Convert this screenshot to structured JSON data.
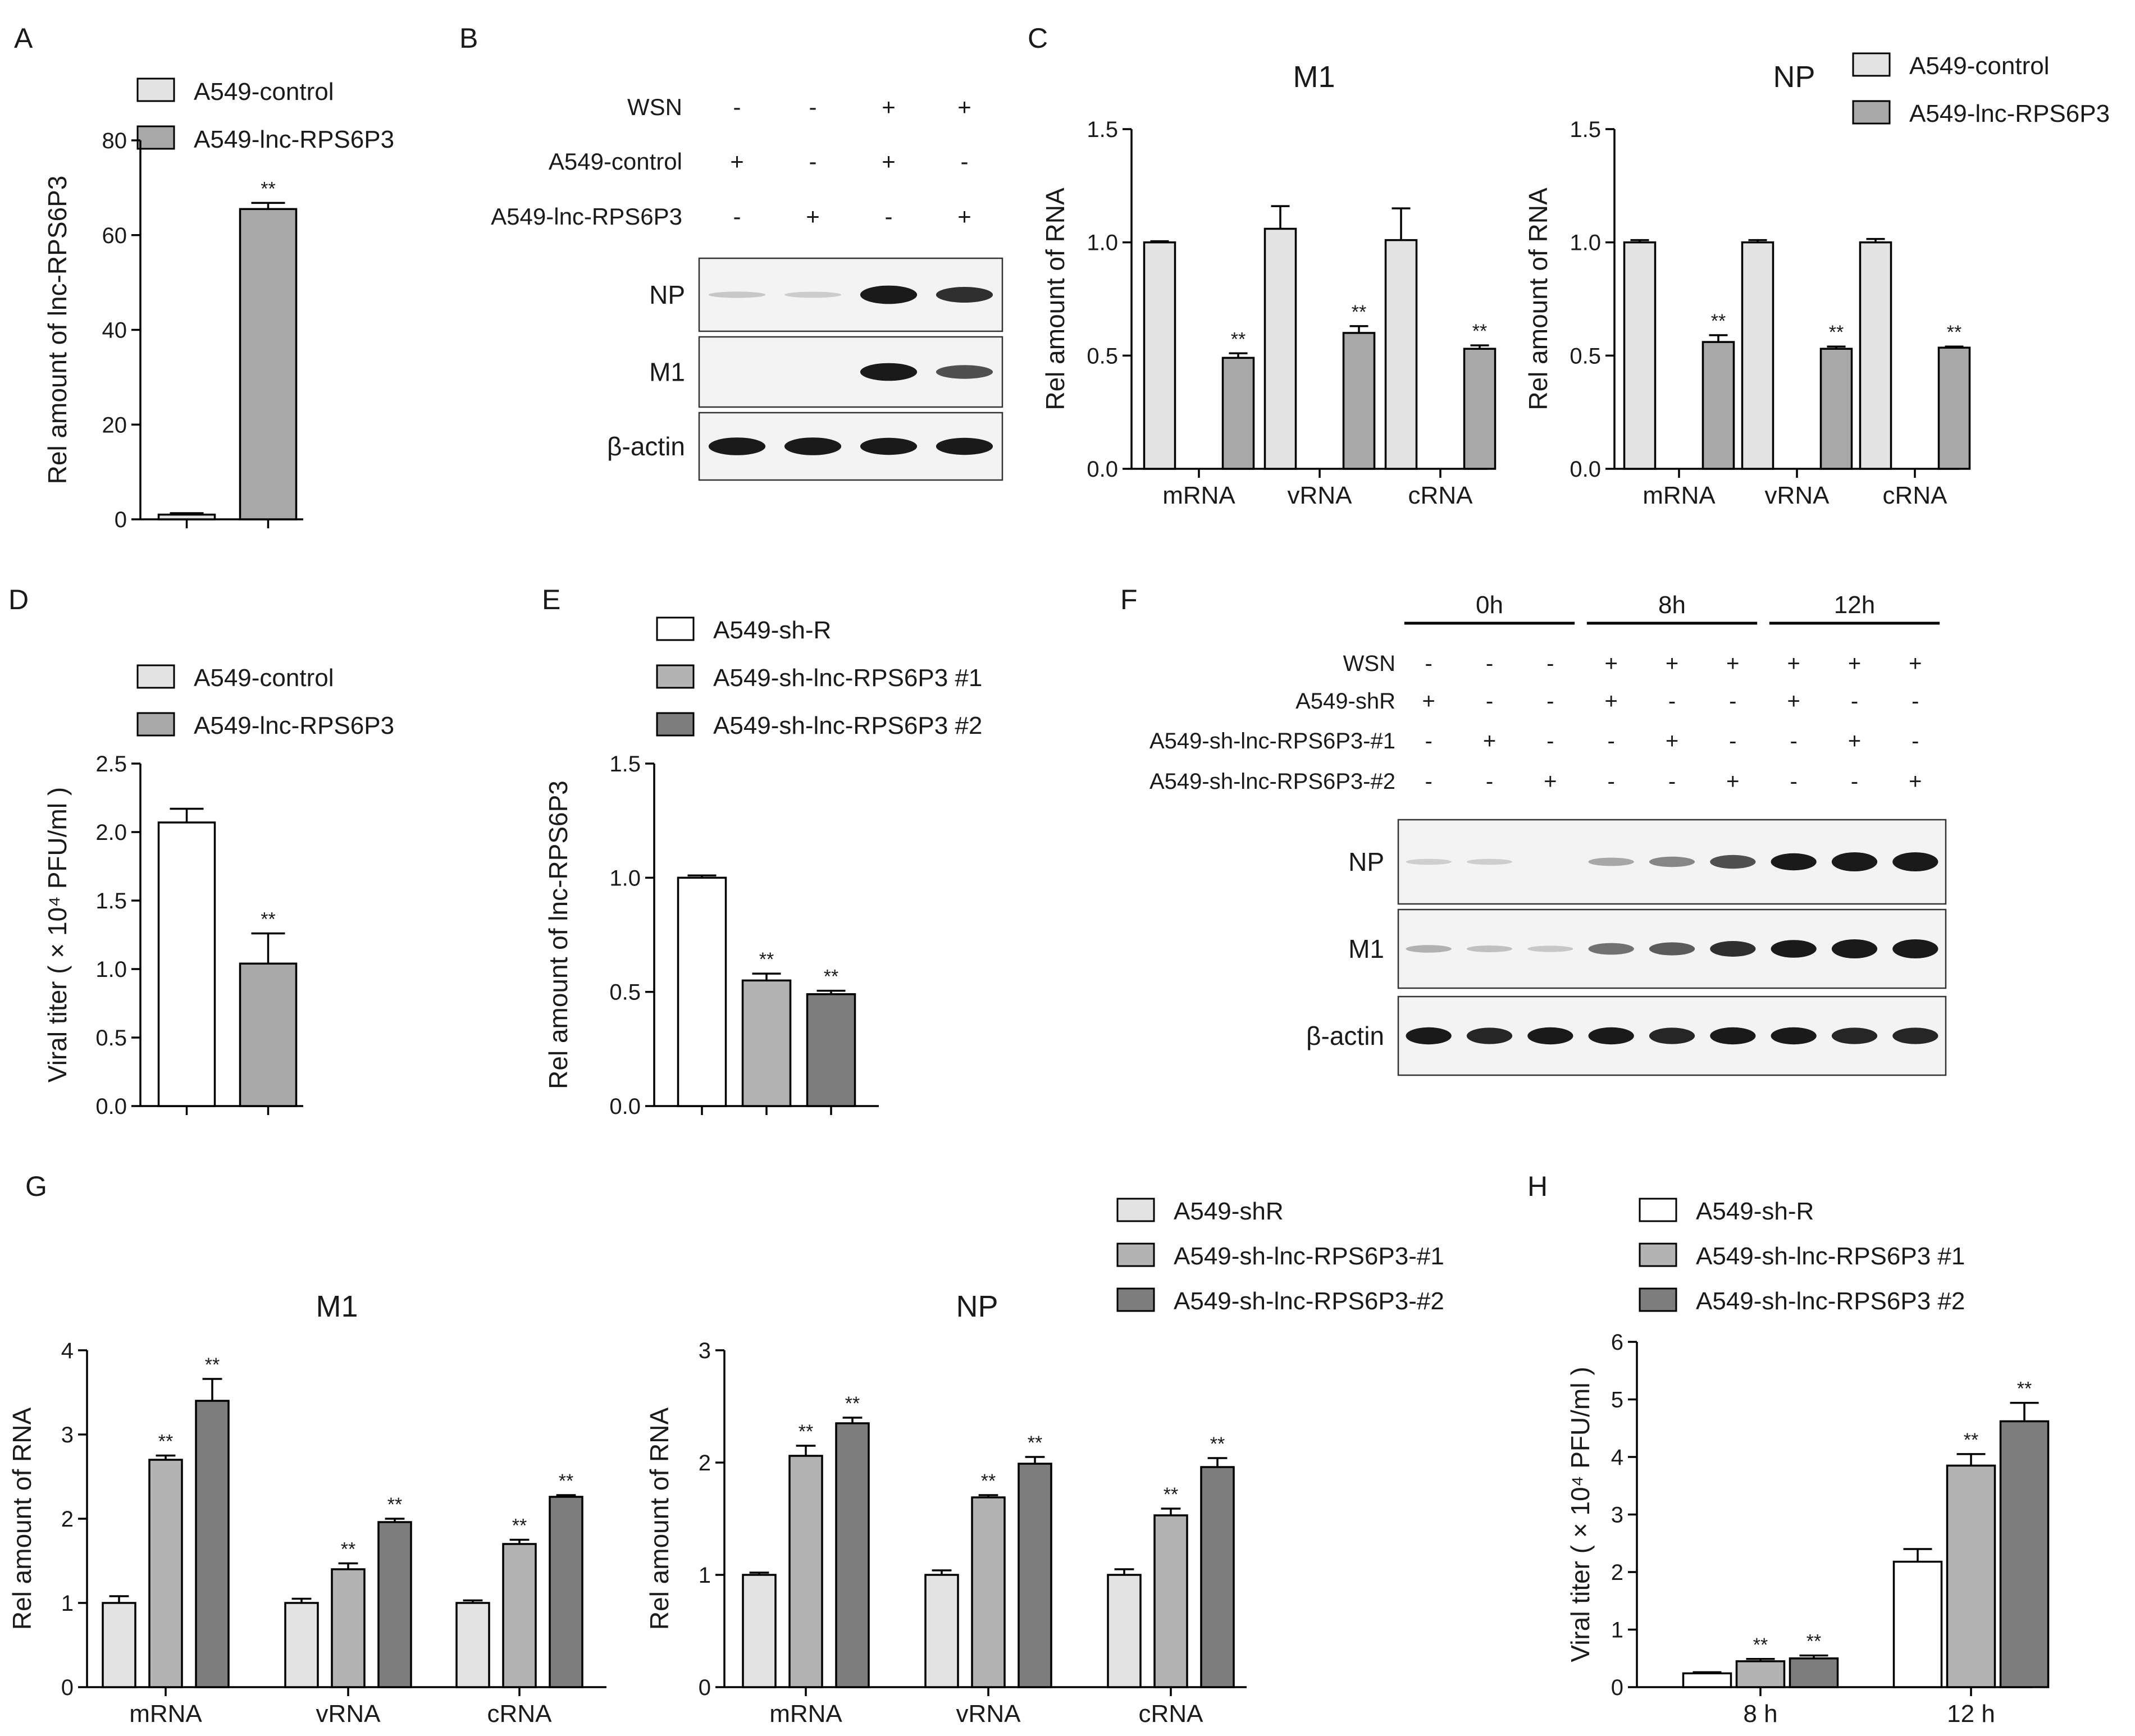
{
  "figure": {
    "panel_letters": [
      "A",
      "B",
      "C",
      "D",
      "E",
      "F",
      "G",
      "H"
    ],
    "colors": {
      "control": "#e3e3e3",
      "treated": "#a8a8a8",
      "sh1": "#b3b3b3",
      "sh2": "#7d7d7d",
      "white": "#ffffff",
      "axis": "#000000",
      "band": "#1a1a1a"
    }
  },
  "chart_data": [
    {
      "id": "A",
      "type": "bar",
      "xlabel": "",
      "ylabel": "Rel amount of lnc-RPS6P3",
      "ylim": [
        0,
        80
      ],
      "yticks": [
        "0",
        "20",
        "40",
        "60",
        "80"
      ],
      "categories": [
        ""
      ],
      "series": [
        {
          "name": "A549-control",
          "values": [
            1.0
          ],
          "errors": [
            0.3
          ],
          "sig": [
            ""
          ]
        },
        {
          "name": "A549-lnc-RPS6P3",
          "values": [
            65.5
          ],
          "errors": [
            1.3
          ],
          "sig": [
            "**"
          ]
        }
      ]
    },
    {
      "id": "C1",
      "type": "bar",
      "title": "M1",
      "ylabel": "Rel amount of RNA",
      "ylim": [
        0,
        1.5
      ],
      "yticks": [
        "0.0",
        "0.5",
        "1.0",
        "1.5"
      ],
      "categories": [
        "mRNA",
        "vRNA",
        "cRNA"
      ],
      "series": [
        {
          "name": "A549-control",
          "values": [
            1.0,
            1.06,
            1.01
          ],
          "errors": [
            0.005,
            0.1,
            0.14
          ],
          "sig": [
            "",
            "",
            ""
          ]
        },
        {
          "name": "A549-lnc-RPS6P3",
          "values": [
            0.49,
            0.6,
            0.53
          ],
          "errors": [
            0.02,
            0.03,
            0.015
          ],
          "sig": [
            "**",
            "**",
            "**"
          ]
        }
      ]
    },
    {
      "id": "C2",
      "type": "bar",
      "title": "NP",
      "ylabel": "Rel amount of RNA",
      "ylim": [
        0,
        1.5
      ],
      "yticks": [
        "0.0",
        "0.5",
        "1.0",
        "1.5"
      ],
      "categories": [
        "mRNA",
        "vRNA",
        "cRNA"
      ],
      "series": [
        {
          "name": "A549-control",
          "values": [
            1.0,
            1.0,
            1.0
          ],
          "errors": [
            0.01,
            0.01,
            0.015
          ],
          "sig": [
            "",
            "",
            ""
          ]
        },
        {
          "name": "A549-lnc-RPS6P3",
          "values": [
            0.56,
            0.53,
            0.535
          ],
          "errors": [
            0.03,
            0.01,
            0.005
          ],
          "sig": [
            "**",
            "**",
            "**"
          ]
        }
      ]
    },
    {
      "id": "D",
      "type": "bar",
      "ylabel": "Viral titer ( × 10⁴ PFU/ml )",
      "ylim": [
        0,
        2.5
      ],
      "yticks": [
        "0.0",
        "0.5",
        "1.0",
        "1.5",
        "2.0",
        "2.5"
      ],
      "categories": [
        ""
      ],
      "series": [
        {
          "name": "A549-control",
          "values": [
            2.07
          ],
          "errors": [
            0.1
          ],
          "sig": [
            ""
          ]
        },
        {
          "name": "A549-lnc-RPS6P3",
          "values": [
            1.04
          ],
          "errors": [
            0.22
          ],
          "sig": [
            "**"
          ]
        }
      ]
    },
    {
      "id": "E",
      "type": "bar",
      "ylabel": "Rel amount of lnc-RPS6P3",
      "ylim": [
        0,
        1.5
      ],
      "yticks": [
        "0.0",
        "0.5",
        "1.0",
        "1.5"
      ],
      "categories": [
        ""
      ],
      "series": [
        {
          "name": "A549-sh-R",
          "values": [
            1.0
          ],
          "errors": [
            0.01
          ],
          "sig": [
            ""
          ]
        },
        {
          "name": "A549-sh-lnc-RPS6P3 #1",
          "values": [
            0.55
          ],
          "errors": [
            0.03
          ],
          "sig": [
            "**"
          ]
        },
        {
          "name": "A549-sh-lnc-RPS6P3 #2",
          "values": [
            0.49
          ],
          "errors": [
            0.015
          ],
          "sig": [
            "**"
          ]
        }
      ]
    },
    {
      "id": "G1",
      "type": "bar",
      "title": "M1",
      "ylabel": "Rel amount of RNA",
      "ylim": [
        0,
        4
      ],
      "yticks": [
        "0",
        "1",
        "2",
        "3",
        "4"
      ],
      "categories": [
        "mRNA",
        "vRNA",
        "cRNA"
      ],
      "series": [
        {
          "name": "A549-shR",
          "values": [
            1.0,
            1.0,
            1.0
          ],
          "errors": [
            0.08,
            0.05,
            0.03
          ],
          "sig": [
            "",
            "",
            ""
          ]
        },
        {
          "name": "A549-sh-lnc-RPS6P3-#1",
          "values": [
            2.7,
            1.4,
            1.7
          ],
          "errors": [
            0.05,
            0.07,
            0.05
          ],
          "sig": [
            "**",
            "**",
            "**"
          ]
        },
        {
          "name": "A549-sh-lnc-RPS6P3-#2",
          "values": [
            3.4,
            1.96,
            2.26
          ],
          "errors": [
            0.26,
            0.04,
            0.02
          ],
          "sig": [
            "**",
            "**",
            "**"
          ]
        }
      ]
    },
    {
      "id": "G2",
      "type": "bar",
      "title": "NP",
      "ylabel": "Rel amount of RNA",
      "ylim": [
        0,
        3
      ],
      "yticks": [
        "0",
        "1",
        "2",
        "3"
      ],
      "categories": [
        "mRNA",
        "vRNA",
        "cRNA"
      ],
      "series": [
        {
          "name": "A549-shR",
          "values": [
            1.0,
            1.0,
            1.0
          ],
          "errors": [
            0.02,
            0.04,
            0.05
          ],
          "sig": [
            "",
            "",
            ""
          ]
        },
        {
          "name": "A549-sh-lnc-RPS6P3-#1",
          "values": [
            2.06,
            1.69,
            1.53
          ],
          "errors": [
            0.09,
            0.02,
            0.06
          ],
          "sig": [
            "**",
            "**",
            "**"
          ]
        },
        {
          "name": "A549-sh-lnc-RPS6P3-#2",
          "values": [
            2.35,
            1.99,
            1.96
          ],
          "errors": [
            0.05,
            0.06,
            0.08
          ],
          "sig": [
            "**",
            "**",
            "**"
          ]
        }
      ]
    },
    {
      "id": "H",
      "type": "bar",
      "ylabel": "Viral titer ( × 10⁴ PFU/ml )",
      "ylim": [
        0,
        6
      ],
      "yticks": [
        "0",
        "1",
        "2",
        "3",
        "4",
        "5",
        "6"
      ],
      "categories": [
        "8 h",
        "12 h"
      ],
      "series": [
        {
          "name": "A549-sh-R",
          "values": [
            0.24,
            2.18
          ],
          "errors": [
            0.02,
            0.22
          ],
          "sig": [
            "",
            ""
          ]
        },
        {
          "name": "A549-sh-lnc-RPS6P3 #1",
          "values": [
            0.45,
            3.85
          ],
          "errors": [
            0.04,
            0.2
          ],
          "sig": [
            "**",
            "**"
          ]
        },
        {
          "name": "A549-sh-lnc-RPS6P3 #2",
          "values": [
            0.5,
            4.62
          ],
          "errors": [
            0.05,
            0.32
          ],
          "sig": [
            "**",
            "**"
          ]
        }
      ]
    }
  ],
  "legends": {
    "A": [
      "A549-control",
      "A549-lnc-RPS6P3"
    ],
    "C": [
      "A549-control",
      "A549-lnc-RPS6P3"
    ],
    "D": [
      "A549-control",
      "A549-lnc-RPS6P3"
    ],
    "E": [
      "A549-sh-R",
      "A549-sh-lnc-RPS6P3 #1",
      "A549-sh-lnc-RPS6P3 #2"
    ],
    "G": [
      "A549-shR",
      "A549-sh-lnc-RPS6P3-#1",
      "A549-sh-lnc-RPS6P3-#2"
    ],
    "H": [
      "A549-sh-R",
      "A549-sh-lnc-RPS6P3 #1",
      "A549-sh-lnc-RPS6P3 #2"
    ]
  },
  "blot_B": {
    "row_labels": [
      "WSN",
      "A549-control",
      "A549-lnc-RPS6P3"
    ],
    "signs": [
      [
        "-",
        "-",
        "+",
        "+"
      ],
      [
        "+",
        "-",
        "+",
        "-"
      ],
      [
        "-",
        "+",
        "-",
        "+"
      ]
    ],
    "bands": [
      {
        "label": "NP",
        "intensity": [
          0.05,
          0.03,
          0.95,
          0.75
        ]
      },
      {
        "label": "M1",
        "intensity": [
          0.0,
          0.0,
          0.9,
          0.6
        ]
      },
      {
        "label": "β-actin",
        "intensity": [
          0.9,
          0.9,
          0.85,
          0.85
        ]
      }
    ]
  },
  "blot_F": {
    "time_labels": [
      "0h",
      "8h",
      "12h"
    ],
    "row_labels": [
      "WSN",
      "A549-shR",
      "A549-sh-lnc-RPS6P3-#1",
      "A549-sh-lnc-RPS6P3-#2"
    ],
    "signs": [
      [
        "-",
        "-",
        "-",
        "+",
        "+",
        "+",
        "+",
        "+",
        "+"
      ],
      [
        "+",
        "-",
        "-",
        "+",
        "-",
        "-",
        "+",
        "-",
        "-"
      ],
      [
        "-",
        "+",
        "-",
        "-",
        "+",
        "-",
        "-",
        "+",
        "-"
      ],
      [
        "-",
        "-",
        "+",
        "-",
        "-",
        "+",
        "-",
        "-",
        "+"
      ]
    ],
    "bands": [
      {
        "label": "NP",
        "intensity": [
          0.02,
          0.02,
          0.0,
          0.2,
          0.35,
          0.6,
          0.85,
          1.0,
          1.0
        ]
      },
      {
        "label": "M1",
        "intensity": [
          0.15,
          0.08,
          0.05,
          0.45,
          0.55,
          0.75,
          0.9,
          1.0,
          1.0
        ]
      },
      {
        "label": "β-actin",
        "intensity": [
          0.85,
          0.8,
          0.85,
          0.85,
          0.8,
          0.85,
          0.85,
          0.8,
          0.8
        ]
      }
    ]
  }
}
